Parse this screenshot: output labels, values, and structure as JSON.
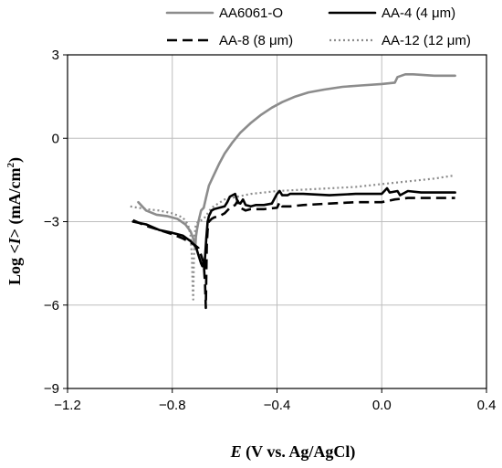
{
  "chart_data": {
    "type": "line",
    "xlabel_parts": {
      "var": "E",
      "rest": " (V vs. Ag/AgCl)"
    },
    "ylabel_parts": {
      "pre": "Log <",
      "var": "I",
      "post": "> (mA/cm",
      "sup": "2",
      "close": ")"
    },
    "xlim": [
      -1.2,
      0.4
    ],
    "ylim": [
      -9,
      3
    ],
    "xticks": [
      -1.2,
      -0.8,
      -0.4,
      0.0,
      0.4
    ],
    "xtick_labels": [
      "−1.2",
      "−0.8",
      "−0.4",
      "0.0",
      "0.4"
    ],
    "yticks": [
      -9,
      -6,
      -3,
      0,
      3
    ],
    "ytick_labels": [
      "−9",
      "−6",
      "−3",
      "0",
      "3"
    ],
    "grid": true,
    "legend_position": "top",
    "series": [
      {
        "name": "AA6061-O",
        "color": "#8c8c8c",
        "style": "solid",
        "x": [
          -0.93,
          -0.9,
          -0.86,
          -0.82,
          -0.78,
          -0.75,
          -0.73,
          -0.72,
          -0.715,
          -0.712,
          -0.71,
          -0.705,
          -0.7,
          -0.69,
          -0.68,
          -0.67,
          -0.66,
          -0.64,
          -0.62,
          -0.6,
          -0.57,
          -0.54,
          -0.5,
          -0.46,
          -0.42,
          -0.38,
          -0.33,
          -0.28,
          -0.22,
          -0.15,
          -0.08,
          0.0,
          0.05,
          0.06,
          0.09,
          0.12,
          0.2,
          0.28
        ],
        "y": [
          -2.3,
          -2.6,
          -2.75,
          -2.8,
          -2.9,
          -3.1,
          -3.35,
          -3.6,
          -3.85,
          -3.95,
          -3.55,
          -3.25,
          -3.0,
          -2.6,
          -2.5,
          -2.1,
          -1.7,
          -1.3,
          -0.9,
          -0.55,
          -0.15,
          0.2,
          0.55,
          0.85,
          1.1,
          1.3,
          1.5,
          1.65,
          1.75,
          1.85,
          1.9,
          1.95,
          2.0,
          2.2,
          2.3,
          2.3,
          2.25,
          2.25
        ]
      },
      {
        "name": "AA-4 (4 μm)",
        "color": "#000000",
        "style": "solid",
        "x": [
          -0.95,
          -0.9,
          -0.85,
          -0.8,
          -0.76,
          -0.73,
          -0.71,
          -0.7,
          -0.69,
          -0.685,
          -0.68,
          -0.678,
          -0.675,
          -0.67,
          -0.665,
          -0.66,
          -0.65,
          -0.64,
          -0.62,
          -0.6,
          -0.59,
          -0.58,
          -0.57,
          -0.56,
          -0.55,
          -0.54,
          -0.53,
          -0.52,
          -0.5,
          -0.48,
          -0.45,
          -0.42,
          -0.4,
          -0.39,
          -0.38,
          -0.36,
          -0.35,
          -0.3,
          -0.2,
          -0.1,
          0.0,
          0.02,
          0.03,
          0.06,
          0.07,
          0.1,
          0.15,
          0.2,
          0.28
        ],
        "y": [
          -3.0,
          -3.1,
          -3.3,
          -3.4,
          -3.5,
          -3.7,
          -3.9,
          -4.2,
          -4.5,
          -4.6,
          -4.4,
          -4.7,
          -4.3,
          -3.6,
          -3.0,
          -2.8,
          -2.6,
          -2.55,
          -2.5,
          -2.45,
          -2.3,
          -2.1,
          -2.05,
          -2.0,
          -2.3,
          -2.35,
          -2.2,
          -2.4,
          -2.45,
          -2.4,
          -2.4,
          -2.35,
          -2.0,
          -1.9,
          -2.05,
          -2.05,
          -2.0,
          -2.0,
          -2.05,
          -2.0,
          -2.0,
          -1.8,
          -1.95,
          -1.9,
          -2.05,
          -1.9,
          -1.95,
          -1.95,
          -1.95
        ]
      },
      {
        "name": "AA-8 (8 μm)",
        "color": "#000000",
        "style": "dashed",
        "x": [
          -0.95,
          -0.9,
          -0.85,
          -0.8,
          -0.76,
          -0.72,
          -0.7,
          -0.69,
          -0.68,
          -0.675,
          -0.672,
          -0.67,
          -0.668,
          -0.665,
          -0.66,
          -0.65,
          -0.64,
          -0.62,
          -0.6,
          -0.58,
          -0.56,
          -0.55,
          -0.54,
          -0.52,
          -0.5,
          -0.45,
          -0.4,
          -0.39,
          -0.38,
          -0.35,
          -0.3,
          -0.2,
          -0.1,
          0.0,
          0.05,
          0.1,
          0.2,
          0.28
        ],
        "y": [
          -2.95,
          -3.15,
          -3.3,
          -3.45,
          -3.6,
          -3.8,
          -3.95,
          -4.2,
          -4.5,
          -5.2,
          -6.1,
          -5.0,
          -3.8,
          -3.3,
          -3.0,
          -2.9,
          -2.85,
          -2.8,
          -2.7,
          -2.5,
          -2.4,
          -2.25,
          -2.5,
          -2.6,
          -2.55,
          -2.55,
          -2.5,
          -2.3,
          -2.45,
          -2.45,
          -2.4,
          -2.35,
          -2.3,
          -2.3,
          -2.2,
          -2.15,
          -2.15,
          -2.15
        ]
      },
      {
        "name": "AA-12 (12 μm)",
        "color": "#8c8c8c",
        "style": "dotted",
        "x": [
          -0.96,
          -0.9,
          -0.85,
          -0.8,
          -0.76,
          -0.74,
          -0.73,
          -0.725,
          -0.722,
          -0.72,
          -0.718,
          -0.715,
          -0.71,
          -0.7,
          -0.68,
          -0.65,
          -0.6,
          -0.55,
          -0.5,
          -0.45,
          -0.4,
          -0.3,
          -0.2,
          -0.1,
          0.0,
          0.1,
          0.2,
          0.27
        ],
        "y": [
          -2.45,
          -2.55,
          -2.6,
          -2.7,
          -2.85,
          -3.1,
          -3.5,
          -4.3,
          -5.4,
          -5.8,
          -4.6,
          -3.5,
          -3.1,
          -3.0,
          -2.9,
          -2.5,
          -2.2,
          -2.1,
          -2.0,
          -1.95,
          -1.9,
          -1.85,
          -1.8,
          -1.75,
          -1.65,
          -1.55,
          -1.45,
          -1.35
        ]
      }
    ]
  }
}
